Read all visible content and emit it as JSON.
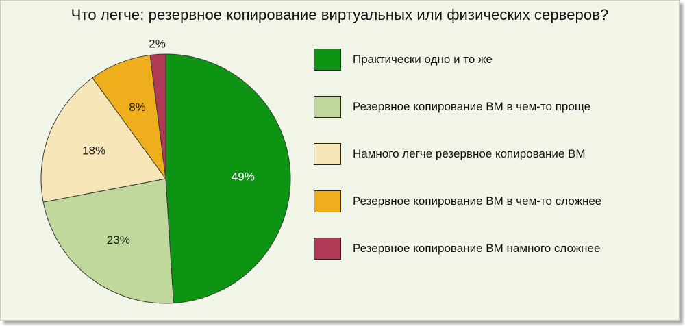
{
  "chart_data": {
    "type": "pie",
    "title": "Что легче: резервное копирование виртуальных или физических серверов?",
    "slices": [
      {
        "label": "Практически одно и то же",
        "value": 49,
        "value_label": "49%",
        "color": "#0e9413"
      },
      {
        "label": "Резервное копирование ВМ в чем-то проще",
        "value": 23,
        "value_label": "23%",
        "color": "#c0d89c"
      },
      {
        "label": "Намного легче резервное копирование ВМ",
        "value": 18,
        "value_label": "18%",
        "color": "#f6e6b8"
      },
      {
        "label": "Резервное копирование ВМ в чем-то сложнее",
        "value": 8,
        "value_label": "8%",
        "color": "#efae1c"
      },
      {
        "label": "Резервное копирование ВМ намного сложнее",
        "value": 2,
        "value_label": "2%",
        "color": "#b03a55"
      }
    ],
    "legend_position": "right"
  }
}
